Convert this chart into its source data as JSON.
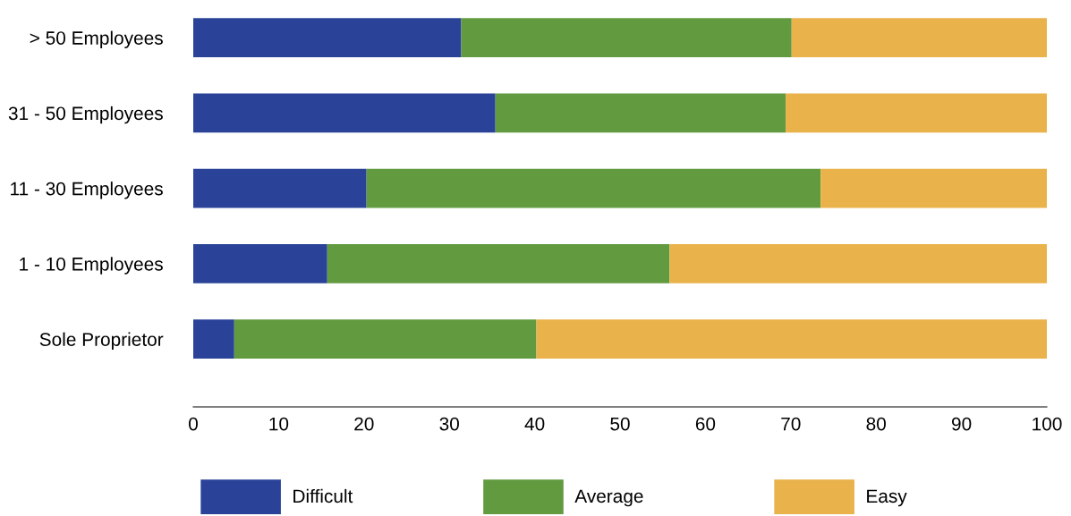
{
  "chart_data": {
    "type": "bar",
    "orientation": "horizontal",
    "stacked": true,
    "categories": [
      "> 50 Employees",
      "31 - 50 Employees",
      "11 - 30 Employees",
      "1 - 10 Employees",
      "Sole Proprietor"
    ],
    "series": [
      {
        "name": "Difficult",
        "color": "#2a4399",
        "values": [
          31.4,
          35.4,
          20.3,
          15.7,
          4.8
        ]
      },
      {
        "name": "Average",
        "color": "#629a40",
        "values": [
          38.7,
          34.0,
          53.2,
          40.1,
          35.4
        ]
      },
      {
        "name": "Easy",
        "color": "#e9b24a",
        "values": [
          29.9,
          30.6,
          26.5,
          44.2,
          59.8
        ]
      }
    ],
    "xlim": [
      0,
      100
    ],
    "xticks": [
      0,
      10,
      20,
      30,
      40,
      50,
      60,
      70,
      80,
      90,
      100
    ],
    "grid": false,
    "legend": "bottom"
  }
}
